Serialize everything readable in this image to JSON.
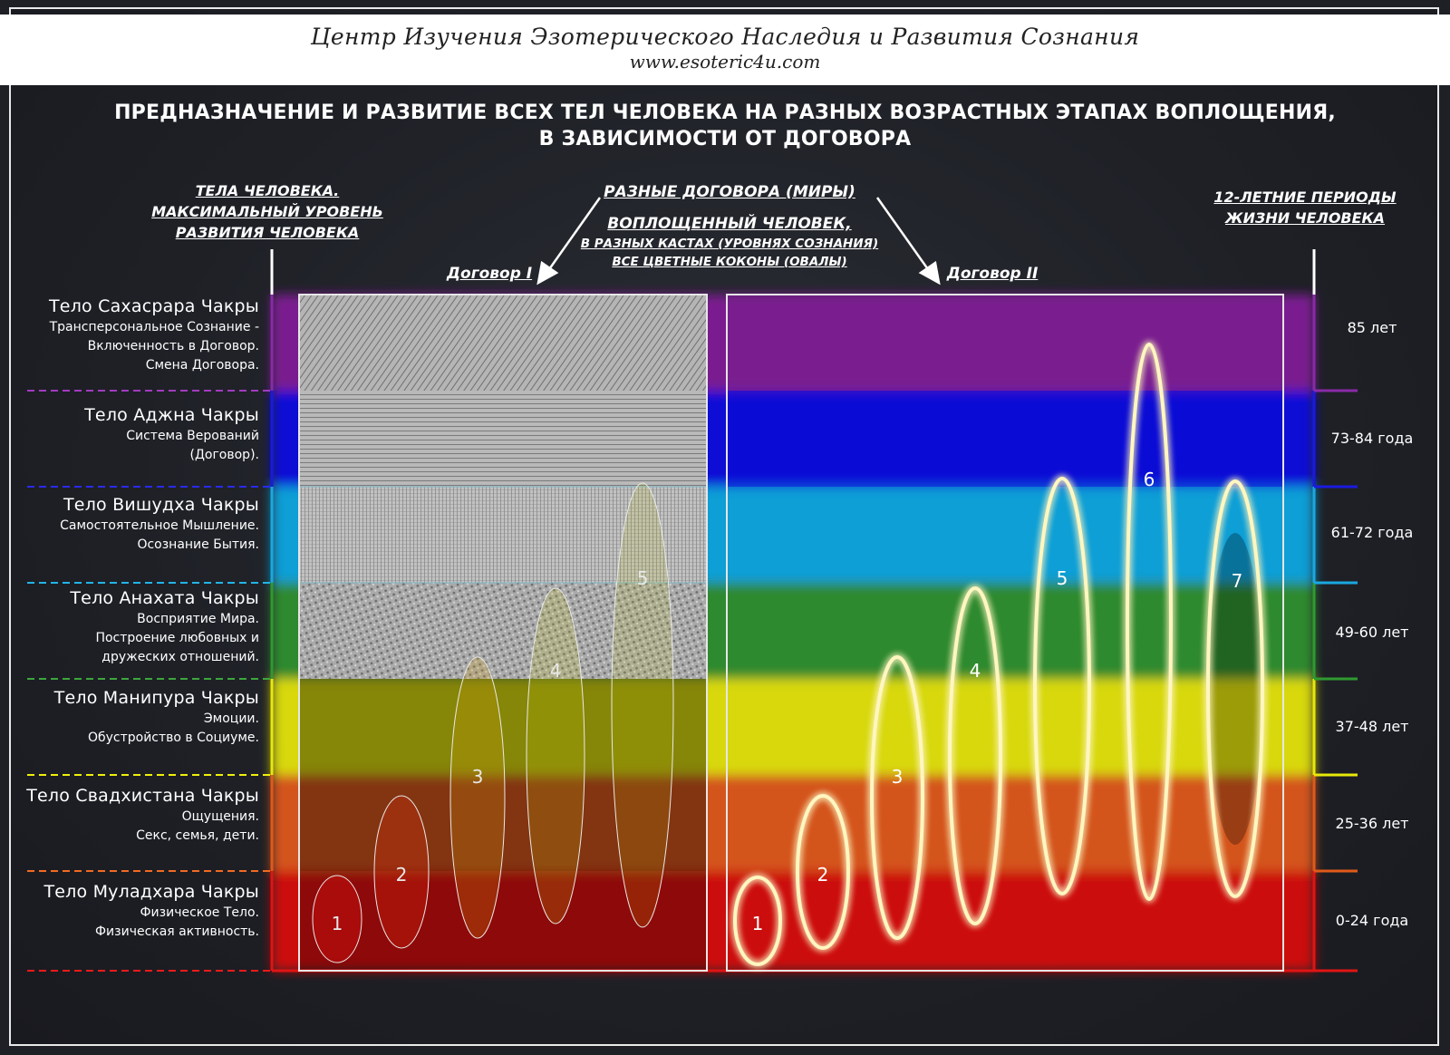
{
  "header": {
    "organization": "Центр Изучения Эзотерического Наследия и Развития Сознания",
    "website": "www.esoteric4u.com"
  },
  "title": {
    "line1": "ПРЕДНАЗНАЧЕНИЕ И РАЗВИТИЕ ВСЕХ ТЕЛ ЧЕЛОВЕКА НА РАЗНЫХ ВОЗРАСТНЫХ ЭТАПАХ ВОПЛОЩЕНИЯ,",
    "line2": "В ЗАВИСИМОСТИ ОТ ДОГОВОРА"
  },
  "column_headers": {
    "bodies": [
      "ТЕЛА ЧЕЛОВЕКА.",
      "МАКСИМАЛЬНЫЙ УРОВЕНЬ",
      "РАЗВИТИЯ ЧЕЛОВЕКА"
    ],
    "contracts": "РАЗНЫЕ ДОГОВОРА (МИРЫ)",
    "incarnated": "ВОПЛОЩЕННЫЙ ЧЕЛОВЕК,",
    "castes": "В РАЗНЫХ КАСТАХ (УРОВНЯХ СОЗНАНИЯ)",
    "cocoons": "ВСЕ ЦВЕТНЫЕ КОКОНЫ (ОВАЛЫ)",
    "periods": [
      "12-ЛЕТНИЕ ПЕРИОДЫ",
      "ЖИЗНИ ЧЕЛОВЕКА"
    ]
  },
  "contract_labels": {
    "contract_1": "Договор I",
    "contract_2": "Договор II"
  },
  "bands": [
    {
      "title": "Тело Сахасрара Чакры",
      "lines": [
        "Трансперсональное Сознание -",
        "Включенность в Договор.",
        "Смена Договора."
      ],
      "age": "85 лет",
      "color": "#7a1f90"
    },
    {
      "title": "Тело Аджна Чакры",
      "lines": [
        "Система Верований",
        "(Договор)."
      ],
      "age": "73-84 года",
      "color": "#0a0ad6"
    },
    {
      "title": "Тело Вишудха Чакры",
      "lines": [
        "Самостоятельное Мышление.",
        "Осознание Бытия."
      ],
      "age": "61-72 года",
      "color": "#0c9fd6"
    },
    {
      "title": "Тело Анахата Чакры",
      "lines": [
        "Восприятие Мира.",
        "Построение любовных и",
        "дружеских отношений."
      ],
      "age": "49-60 лет",
      "color": "#2f8a2f"
    },
    {
      "title": "Тело Манипура Чакры",
      "lines": [
        "Эмоции.",
        "Обустройство в Социуме."
      ],
      "age": "37-48 лет",
      "color": "#d8d80a"
    },
    {
      "title": "Тело Свадхистана Чакры",
      "lines": [
        "Ощущения.",
        "Секс, семья, дети."
      ],
      "age": "25-36 лет",
      "color": "#d4541a"
    },
    {
      "title": "Тело Муладхара Чакры",
      "lines": [
        "Физическое Тело.",
        "Физическая активность."
      ],
      "age": "0-24 года",
      "color": "#cc0d0d"
    }
  ],
  "contract_1_ovals": [
    "1",
    "2",
    "3",
    "4",
    "5"
  ],
  "contract_2_ovals": [
    "1",
    "2",
    "3",
    "4",
    "5",
    "6",
    "7"
  ]
}
